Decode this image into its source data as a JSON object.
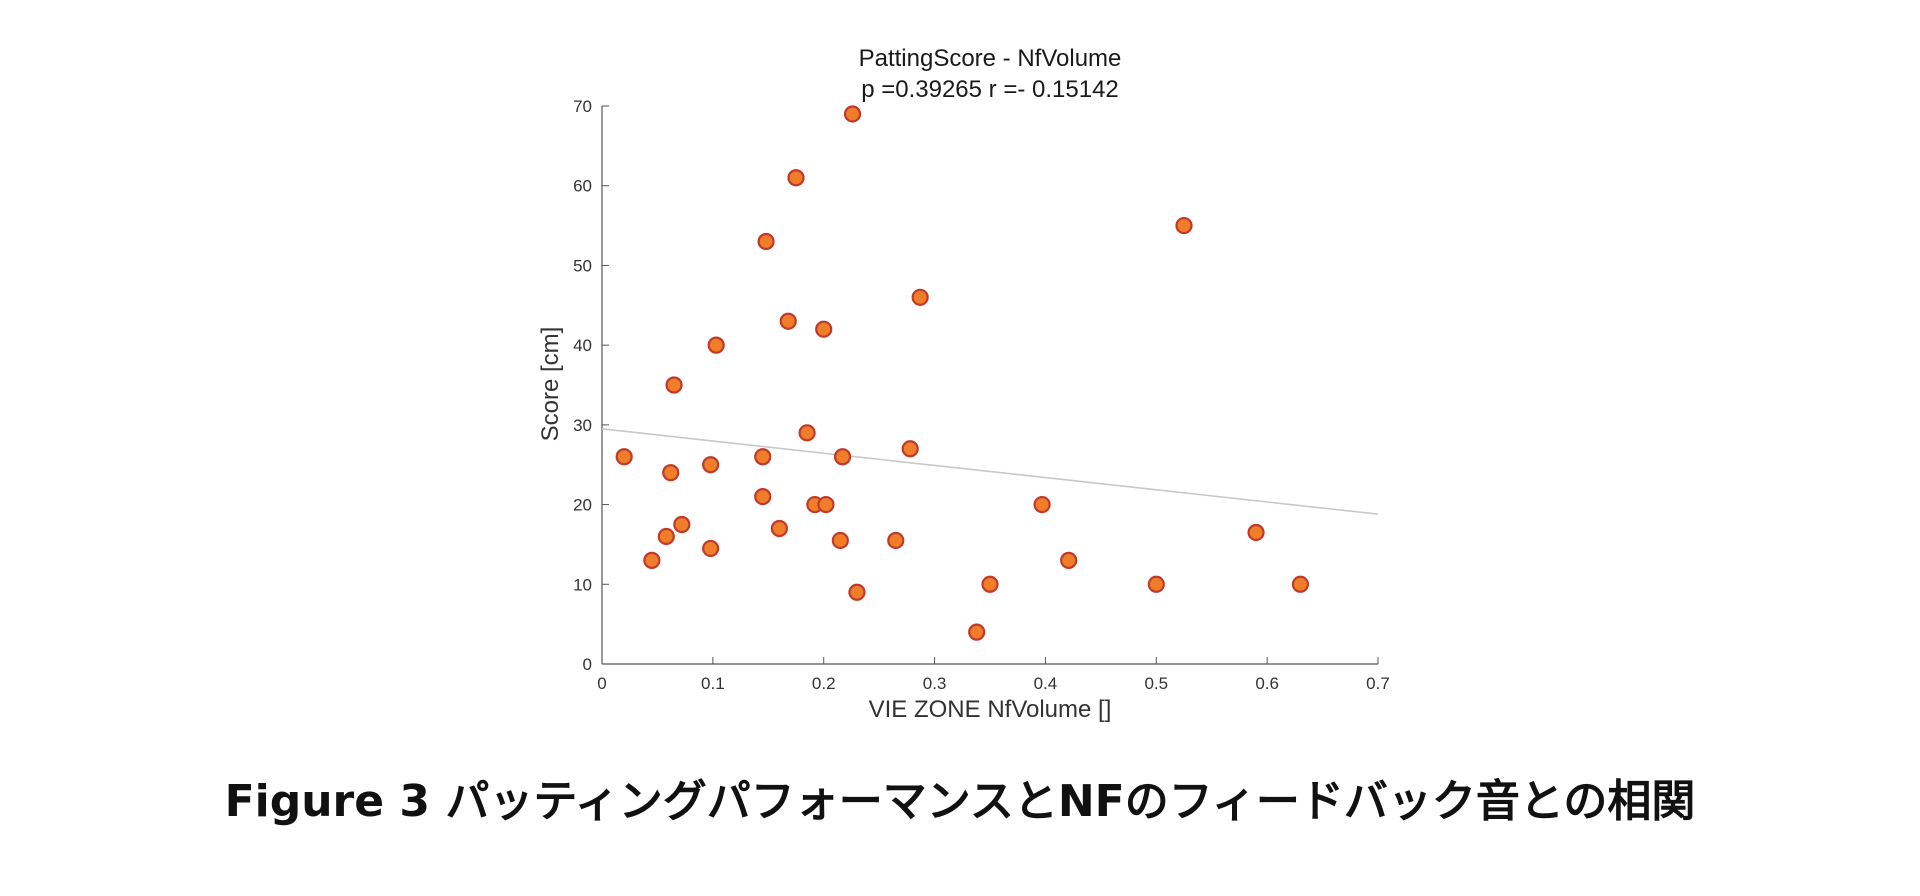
{
  "caption": "Figure 3 パッティングパフォーマンスとNFのフィードバック音との相関",
  "chart_data": {
    "type": "scatter",
    "title": "PattingScore -  NfVolume",
    "subtitle": "p =0.39265   r =- 0.15142",
    "xlabel": "VIE ZONE NfVolume []",
    "ylabel": "Score [cm]",
    "xlim": [
      0,
      0.7
    ],
    "ylim": [
      0,
      70
    ],
    "xticks": [
      0,
      0.1,
      0.2,
      0.3,
      0.4,
      0.5,
      0.6,
      0.7
    ],
    "xtick_labels": [
      "0",
      "0.1",
      "0.2",
      "0.3",
      "0.4",
      "0.5",
      "0.6",
      "0.7"
    ],
    "yticks": [
      0,
      10,
      20,
      30,
      40,
      50,
      60,
      70
    ],
    "ytick_labels": [
      "0",
      "10",
      "20",
      "30",
      "40",
      "50",
      "60",
      "70"
    ],
    "grid": false,
    "marker_fill": "#f07d28",
    "marker_edge": "#c0392b",
    "trendline_color": "#c8c8c8",
    "trendline": {
      "x": [
        0,
        0.7
      ],
      "y": [
        29.5,
        18.8
      ]
    },
    "points": [
      {
        "x": 0.02,
        "y": 26
      },
      {
        "x": 0.045,
        "y": 13
      },
      {
        "x": 0.058,
        "y": 16
      },
      {
        "x": 0.062,
        "y": 24
      },
      {
        "x": 0.065,
        "y": 35
      },
      {
        "x": 0.072,
        "y": 17.5
      },
      {
        "x": 0.098,
        "y": 25
      },
      {
        "x": 0.098,
        "y": 14.5
      },
      {
        "x": 0.103,
        "y": 40
      },
      {
        "x": 0.145,
        "y": 26
      },
      {
        "x": 0.145,
        "y": 21
      },
      {
        "x": 0.148,
        "y": 53
      },
      {
        "x": 0.16,
        "y": 17
      },
      {
        "x": 0.168,
        "y": 43
      },
      {
        "x": 0.175,
        "y": 61
      },
      {
        "x": 0.185,
        "y": 29
      },
      {
        "x": 0.192,
        "y": 20
      },
      {
        "x": 0.2,
        "y": 42
      },
      {
        "x": 0.202,
        "y": 20
      },
      {
        "x": 0.215,
        "y": 15.5
      },
      {
        "x": 0.217,
        "y": 26
      },
      {
        "x": 0.226,
        "y": 69
      },
      {
        "x": 0.23,
        "y": 9
      },
      {
        "x": 0.265,
        "y": 15.5
      },
      {
        "x": 0.278,
        "y": 27
      },
      {
        "x": 0.287,
        "y": 46
      },
      {
        "x": 0.338,
        "y": 4
      },
      {
        "x": 0.35,
        "y": 10
      },
      {
        "x": 0.397,
        "y": 20
      },
      {
        "x": 0.421,
        "y": 13
      },
      {
        "x": 0.5,
        "y": 10
      },
      {
        "x": 0.525,
        "y": 55
      },
      {
        "x": 0.59,
        "y": 16.5
      },
      {
        "x": 0.63,
        "y": 10
      }
    ]
  }
}
